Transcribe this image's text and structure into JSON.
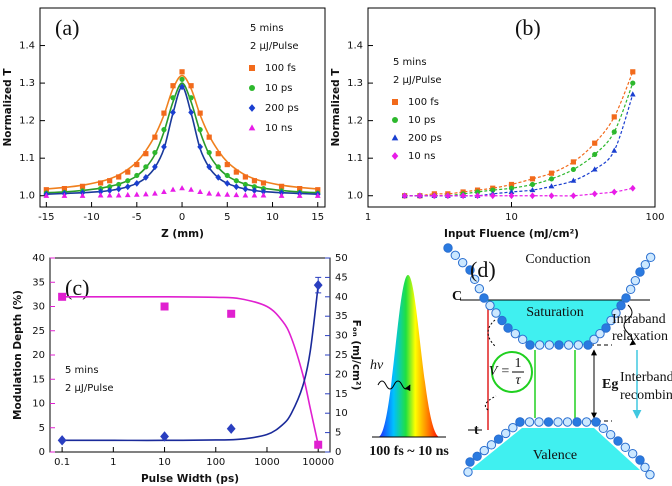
{
  "chart_data": [
    {
      "type": "scatter",
      "panel_label": "(a)",
      "xlabel": "Z (mm)",
      "ylabel": "Normalized T",
      "notes": [
        "5 mins",
        "2 μJ/Pulse"
      ],
      "xlim": [
        -15.7,
        15.8
      ],
      "xticks": [
        -15,
        -10,
        -5,
        0,
        5,
        10,
        15
      ],
      "ylim": [
        0.97,
        1.5
      ],
      "yticks": [
        {
          "value": 1.0,
          "label": "1.0"
        },
        1.1,
        1.2,
        1.3,
        1.4
      ],
      "x": [
        -15,
        -13,
        -11,
        -9,
        -8,
        -7,
        -6,
        -5,
        -4,
        -3,
        -2,
        -1,
        0,
        1,
        2,
        3,
        4,
        5,
        6,
        7,
        8,
        9,
        11,
        13,
        15
      ],
      "series": [
        {
          "name": "100 fs",
          "color": "#f26a1b",
          "marker": "square",
          "values": [
            1.016,
            1.019,
            1.025,
            1.034,
            1.04,
            1.05,
            1.063,
            1.083,
            1.112,
            1.156,
            1.22,
            1.293,
            1.33,
            1.293,
            1.22,
            1.156,
            1.112,
            1.083,
            1.063,
            1.05,
            1.04,
            1.034,
            1.025,
            1.019,
            1.016
          ],
          "fit_color": "#f0801e",
          "fit": [
            1.018,
            1.022,
            1.028,
            1.038,
            1.045,
            1.055,
            1.07,
            1.09,
            1.12,
            1.16,
            1.215,
            1.285,
            1.32,
            1.285,
            1.215,
            1.16,
            1.12,
            1.09,
            1.07,
            1.055,
            1.045,
            1.038,
            1.028,
            1.022,
            1.018
          ]
        },
        {
          "name": "10 ps",
          "color": "#2db82d",
          "marker": "circle",
          "values": [
            1.007,
            1.009,
            1.013,
            1.019,
            1.024,
            1.03,
            1.04,
            1.054,
            1.077,
            1.115,
            1.176,
            1.261,
            1.31,
            1.261,
            1.176,
            1.115,
            1.077,
            1.054,
            1.04,
            1.03,
            1.024,
            1.019,
            1.013,
            1.009,
            1.007
          ],
          "fit_color": "#2a9a2a",
          "fit": [
            1.008,
            1.01,
            1.014,
            1.02,
            1.025,
            1.031,
            1.04,
            1.053,
            1.075,
            1.11,
            1.17,
            1.25,
            1.3,
            1.25,
            1.17,
            1.11,
            1.075,
            1.053,
            1.04,
            1.031,
            1.025,
            1.02,
            1.014,
            1.01,
            1.008
          ]
        },
        {
          "name": "200 ps",
          "color": "#1a3fd0",
          "marker": "diamond",
          "values": [
            1.004,
            1.006,
            1.008,
            1.011,
            1.014,
            1.018,
            1.024,
            1.033,
            1.049,
            1.077,
            1.13,
            1.222,
            1.29,
            1.222,
            1.13,
            1.077,
            1.049,
            1.033,
            1.024,
            1.018,
            1.014,
            1.011,
            1.008,
            1.006,
            1.004
          ],
          "fit_color": "#1a3a9a",
          "fit": [
            1.004,
            1.006,
            1.008,
            1.011,
            1.014,
            1.018,
            1.024,
            1.033,
            1.048,
            1.075,
            1.125,
            1.22,
            1.29,
            1.22,
            1.125,
            1.075,
            1.048,
            1.033,
            1.024,
            1.018,
            1.014,
            1.011,
            1.008,
            1.006,
            1.004
          ]
        },
        {
          "name": "10 ns",
          "color": "#e81ce8",
          "marker": "triangle",
          "values": [
            1.0,
            1.0,
            1.0,
            1.001,
            1.001,
            1.001,
            1.002,
            1.003,
            1.004,
            1.006,
            1.01,
            1.016,
            1.02,
            1.016,
            1.01,
            1.006,
            1.004,
            1.003,
            1.002,
            1.001,
            1.001,
            1.001,
            1.0,
            1.0,
            1.0
          ]
        }
      ]
    },
    {
      "type": "scatter",
      "panel_label": "(b)",
      "xlabel": "Input Fluence (mJ/cm²)",
      "ylabel": "Normalized T",
      "notes": [
        "5 mins",
        "2 μJ/Pulse"
      ],
      "xlog": true,
      "xlim": [
        1,
        100
      ],
      "xticks": [
        1,
        10,
        100
      ],
      "ylim": [
        0.97,
        1.5
      ],
      "yticks": [
        {
          "value": 1.0,
          "label": "1.0"
        },
        1.1,
        1.2,
        1.3,
        1.4
      ],
      "x": [
        1.8,
        2.3,
        2.9,
        3.6,
        4.6,
        5.8,
        7.4,
        10,
        14,
        19,
        27,
        38,
        52,
        70
      ],
      "series": [
        {
          "name": "100 fs",
          "color": "#f26a1b",
          "marker": "square",
          "dashed": true,
          "values": [
            1.0,
            1.0,
            1.005,
            1.005,
            1.01,
            1.015,
            1.02,
            1.03,
            1.045,
            1.06,
            1.09,
            1.14,
            1.21,
            1.33
          ]
        },
        {
          "name": "10 ps",
          "color": "#2db82d",
          "marker": "circle",
          "dashed": true,
          "values": [
            1.0,
            1.0,
            1.0,
            1.0,
            1.005,
            1.01,
            1.015,
            1.02,
            1.03,
            1.045,
            1.07,
            1.11,
            1.17,
            1.3
          ]
        },
        {
          "name": "200 ps",
          "color": "#1a3fd0",
          "marker": "triangle",
          "dashed": true,
          "values": [
            1.0,
            1.0,
            1.0,
            1.0,
            1.0,
            1.0,
            1.005,
            1.01,
            1.015,
            1.025,
            1.04,
            1.07,
            1.12,
            1.27
          ]
        },
        {
          "name": "10 ns",
          "color": "#e81ce8",
          "marker": "diamond",
          "dashed": true,
          "values": [
            1.0,
            1.0,
            1.0,
            1.0,
            1.0,
            1.0,
            1.0,
            1.0,
            1.0,
            1.0,
            1.0,
            1.005,
            1.01,
            1.02
          ]
        }
      ]
    },
    {
      "type": "scatter",
      "panel_label": "(c)",
      "xlabel": "Pulse Width (ps)",
      "ylabel": "Modulation Depth (%)",
      "y2label": "Fₒₙ (mJ/cm²)",
      "notes": [
        "5 mins",
        "2 μJ/Pulse"
      ],
      "xlog": true,
      "y_color": "#e020d0",
      "y2_color": "#2a3fc0",
      "xlim": [
        0.058,
        17000
      ],
      "xticks": [
        0.1,
        1,
        10,
        100,
        1000,
        10000
      ],
      "ylim": [
        0,
        40
      ],
      "yticks": [
        0,
        5,
        10,
        15,
        20,
        25,
        30,
        35,
        40
      ],
      "y2lim": [
        0,
        50
      ],
      "y2ticks": [
        0,
        5,
        10,
        15,
        20,
        25,
        30,
        35,
        40,
        45,
        50
      ],
      "x": [
        0.1,
        10,
        200,
        10000
      ],
      "fit_x": [
        0.1,
        1,
        10,
        100,
        300,
        1000,
        2000,
        3000,
        5000,
        7000,
        10000
      ],
      "series": [
        {
          "name": "Modulation Depth",
          "color": "#e020d0",
          "marker": "square",
          "values": [
            32,
            30,
            28.5,
            1.5
          ],
          "fit_color": "#e020d0",
          "fit": [
            32,
            32,
            32,
            31.9,
            31.6,
            30,
            27,
            23.5,
            16,
            9,
            1.5
          ]
        },
        {
          "name": "Fon",
          "color": "#2a3fc0",
          "marker": "diamond",
          "axis": "y2",
          "values": [
            3,
            4,
            6,
            43
          ],
          "errors": [
            null,
            null,
            null,
            2
          ],
          "fit_color": "#1a2a9a",
          "fit": [
            3,
            3,
            3,
            3.1,
            3.3,
            4.5,
            7,
            10,
            17,
            26,
            43
          ]
        }
      ]
    }
  ],
  "diagram": {
    "panel_label": "(d)",
    "band_top": "Conduction",
    "saturation": "Saturation",
    "level": "C",
    "intraband": [
      "Intraband",
      "relaxation"
    ],
    "photon": "hν",
    "rate_lhs": "V =",
    "rate_num": "1",
    "rate_den": "τ",
    "gap": "Eg",
    "interband": [
      "Interband",
      "recombination"
    ],
    "band_bottom": "Valence",
    "time_axis": "t",
    "pulse_range": "100 fs ~ 10 ns"
  }
}
